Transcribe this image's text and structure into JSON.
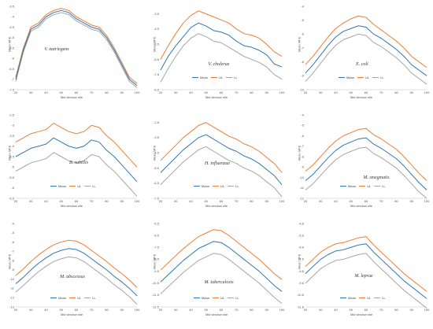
{
  "figure": {
    "colors": {
      "mean": "#2E75B6",
      "ul": "#ED7D31",
      "ll": "#A5A5A5",
      "axis": "#BFBFBF"
    },
    "legend_labels": [
      "Mean",
      "UL",
      "LL"
    ]
  },
  "chart_data": [
    {
      "type": "line",
      "title": "V. natriegens",
      "xlabel": "Mid window site",
      "ylabel": "Mean MFE",
      "xlim": [
        20,
        100
      ],
      "ylim": [
        -7.5,
        -3.5
      ],
      "xticks": [
        20,
        30,
        40,
        50,
        60,
        70,
        80,
        90,
        100
      ],
      "yticks": [
        -7.5,
        -7,
        -6.5,
        -6,
        -5.5,
        -5,
        -4.5,
        -4,
        -3.5
      ],
      "x": [
        20,
        25,
        30,
        35,
        40,
        45,
        50,
        55,
        60,
        65,
        70,
        75,
        80,
        85,
        90,
        95,
        100
      ],
      "series": [
        {
          "name": "Mean",
          "values": [
            -7.0,
            -5.6,
            -4.6,
            -4.4,
            -4.0,
            -3.8,
            -3.7,
            -3.8,
            -4.1,
            -4.3,
            -4.5,
            -4.6,
            -5.0,
            -5.6,
            -6.3,
            -7.0,
            -7.3
          ]
        },
        {
          "name": "UL",
          "values": [
            -6.9,
            -5.5,
            -4.5,
            -4.3,
            -3.9,
            -3.7,
            -3.6,
            -3.7,
            -4.0,
            -4.2,
            -4.4,
            -4.5,
            -4.9,
            -5.5,
            -6.2,
            -6.9,
            -7.2
          ]
        },
        {
          "name": "LL",
          "values": [
            -7.1,
            -5.7,
            -4.7,
            -4.5,
            -4.1,
            -3.9,
            -3.8,
            -3.9,
            -4.2,
            -4.4,
            -4.6,
            -4.7,
            -5.1,
            -5.7,
            -6.4,
            -7.1,
            -7.4
          ]
        }
      ]
    },
    {
      "type": "line",
      "title": "V. cholerae",
      "xlabel": "Mid window site",
      "ylabel": "Mean MFE",
      "xlim": [
        20,
        100
      ],
      "ylim": [
        -8.5,
        -3.0
      ],
      "xticks": [
        20,
        30,
        40,
        50,
        60,
        70,
        80,
        90,
        100
      ],
      "yticks": [
        -8.5,
        -7.5,
        -6.5,
        -5.5,
        -4.5,
        -3.5
      ],
      "x": [
        20,
        25,
        30,
        35,
        40,
        45,
        50,
        55,
        60,
        65,
        70,
        75,
        80,
        85,
        90,
        95,
        100
      ],
      "series": [
        {
          "name": "Mean",
          "values": [
            -7.2,
            -6.3,
            -5.6,
            -5.0,
            -4.4,
            -4.1,
            -4.3,
            -4.6,
            -4.7,
            -4.9,
            -5.3,
            -5.6,
            -5.7,
            -5.9,
            -6.2,
            -6.8,
            -7.0
          ]
        },
        {
          "name": "UL",
          "values": [
            -6.5,
            -5.6,
            -4.8,
            -4.1,
            -3.6,
            -3.3,
            -3.5,
            -3.7,
            -3.9,
            -4.1,
            -4.5,
            -4.8,
            -4.9,
            -5.1,
            -5.5,
            -6.0,
            -6.3
          ]
        },
        {
          "name": "LL",
          "values": [
            -8.0,
            -7.1,
            -6.3,
            -5.6,
            -5.1,
            -4.8,
            -5.0,
            -5.3,
            -5.4,
            -5.7,
            -6.0,
            -6.3,
            -6.5,
            -6.7,
            -7.0,
            -7.5,
            -7.8
          ]
        }
      ]
    },
    {
      "type": "line",
      "title": "E. coli",
      "xlabel": "Mid window site",
      "ylabel": "Mean MFE",
      "xlim": [
        20,
        100
      ],
      "ylim": [
        -10,
        -4
      ],
      "xticks": [
        20,
        30,
        40,
        50,
        60,
        70,
        80,
        90,
        100
      ],
      "yticks": [
        -10,
        -9,
        -8,
        -7,
        -6,
        -5,
        -4
      ],
      "x": [
        20,
        25,
        30,
        35,
        40,
        45,
        50,
        55,
        60,
        65,
        70,
        75,
        80,
        85,
        90,
        95,
        100
      ],
      "series": [
        {
          "name": "Mean",
          "values": [
            -8.8,
            -8.2,
            -7.5,
            -6.8,
            -6.2,
            -5.8,
            -5.6,
            -5.4,
            -5.5,
            -6.0,
            -6.3,
            -6.7,
            -7.1,
            -7.6,
            -8.2,
            -8.6,
            -9.0
          ]
        },
        {
          "name": "UL",
          "values": [
            -8.2,
            -7.6,
            -6.9,
            -6.2,
            -5.6,
            -5.2,
            -4.9,
            -4.7,
            -4.8,
            -5.3,
            -5.7,
            -6.1,
            -6.5,
            -7.0,
            -7.6,
            -8.0,
            -8.4
          ]
        },
        {
          "name": "LL",
          "values": [
            -9.4,
            -8.8,
            -8.1,
            -7.4,
            -6.8,
            -6.4,
            -6.2,
            -6.0,
            -6.1,
            -6.6,
            -6.9,
            -7.3,
            -7.7,
            -8.2,
            -8.8,
            -9.2,
            -9.6
          ]
        }
      ]
    },
    {
      "type": "line",
      "title": "B. subtilis",
      "xlabel": "Mid window site",
      "ylabel": "Mean MFE",
      "xlim": [
        20,
        100
      ],
      "ylim": [
        -6.5,
        -2.5
      ],
      "xticks": [
        20,
        30,
        40,
        50,
        60,
        70,
        80,
        90,
        100
      ],
      "yticks": [
        -6.5,
        -6,
        -5.5,
        -5,
        -4.5,
        -4,
        -3.5,
        -3,
        -2.5
      ],
      "x": [
        20,
        25,
        30,
        35,
        40,
        45,
        50,
        55,
        60,
        65,
        70,
        75,
        80,
        85,
        90,
        95,
        100
      ],
      "series": [
        {
          "name": "Mean",
          "values": [
            -4.5,
            -4.3,
            -4.1,
            -4.0,
            -3.9,
            -3.6,
            -3.8,
            -4.0,
            -4.1,
            -4.0,
            -3.7,
            -3.8,
            -4.2,
            -4.5,
            -4.9,
            -5.3,
            -5.7
          ]
        },
        {
          "name": "UL",
          "values": [
            -3.8,
            -3.6,
            -3.4,
            -3.3,
            -3.2,
            -2.9,
            -3.1,
            -3.3,
            -3.4,
            -3.3,
            -3.0,
            -3.1,
            -3.5,
            -3.8,
            -4.2,
            -4.6,
            -5.0
          ]
        },
        {
          "name": "LL",
          "values": [
            -5.2,
            -5.0,
            -4.8,
            -4.7,
            -4.6,
            -4.3,
            -4.5,
            -4.7,
            -4.8,
            -4.7,
            -4.4,
            -4.5,
            -4.9,
            -5.2,
            -5.6,
            -6.0,
            -6.4
          ]
        }
      ]
    },
    {
      "type": "line",
      "title": "H. influenzae",
      "xlabel": "Mid window site",
      "ylabel": "Mean MFE",
      "xlim": [
        20,
        100
      ],
      "ylim": [
        -7.5,
        -2.0
      ],
      "xticks": [
        20,
        30,
        40,
        50,
        60,
        70,
        80,
        90,
        100
      ],
      "yticks": [
        -7.5,
        -6.5,
        -5.5,
        -4.5,
        -3.5,
        -2.5
      ],
      "x": [
        20,
        25,
        30,
        35,
        40,
        45,
        50,
        55,
        60,
        65,
        70,
        75,
        80,
        85,
        90,
        95,
        100
      ],
      "series": [
        {
          "name": "Mean",
          "values": [
            -5.8,
            -5.3,
            -4.8,
            -4.3,
            -3.9,
            -3.5,
            -3.3,
            -3.6,
            -3.9,
            -4.2,
            -4.4,
            -4.7,
            -4.9,
            -5.2,
            -5.6,
            -6.0,
            -6.6
          ]
        },
        {
          "name": "UL",
          "values": [
            -5.0,
            -4.5,
            -4.0,
            -3.5,
            -3.1,
            -2.7,
            -2.5,
            -2.8,
            -3.1,
            -3.4,
            -3.6,
            -3.9,
            -4.1,
            -4.4,
            -4.8,
            -5.2,
            -5.8
          ]
        },
        {
          "name": "LL",
          "values": [
            -6.6,
            -6.1,
            -5.6,
            -5.1,
            -4.7,
            -4.3,
            -4.1,
            -4.4,
            -4.7,
            -5.0,
            -5.2,
            -5.5,
            -5.7,
            -6.0,
            -6.4,
            -6.8,
            -7.4
          ]
        }
      ]
    },
    {
      "type": "line",
      "title": "M. smegmatis",
      "xlabel": "Mid window site",
      "ylabel": "Mean MFE",
      "xlim": [
        20,
        100
      ],
      "ylim": [
        -12,
        -4
      ],
      "xticks": [
        20,
        30,
        40,
        50,
        60,
        70,
        80,
        90,
        100
      ],
      "yticks": [
        -12,
        -11,
        -10,
        -9,
        -8,
        -7,
        -6,
        -5,
        -4
      ],
      "x": [
        20,
        25,
        30,
        35,
        40,
        45,
        50,
        55,
        60,
        65,
        70,
        75,
        80,
        85,
        90,
        95,
        100
      ],
      "series": [
        {
          "name": "Mean",
          "values": [
            -10.3,
            -9.7,
            -8.9,
            -8.1,
            -7.4,
            -6.9,
            -6.6,
            -6.3,
            -6.2,
            -6.8,
            -7.2,
            -7.7,
            -8.2,
            -8.9,
            -9.7,
            -10.5,
            -11.2
          ]
        },
        {
          "name": "UL",
          "values": [
            -9.4,
            -8.8,
            -8.0,
            -7.2,
            -6.5,
            -6.0,
            -5.7,
            -5.4,
            -5.3,
            -5.9,
            -6.3,
            -6.8,
            -7.3,
            -8.0,
            -8.8,
            -9.6,
            -10.3
          ]
        },
        {
          "name": "LL",
          "values": [
            -11.2,
            -10.6,
            -9.8,
            -9.0,
            -8.3,
            -7.8,
            -7.5,
            -7.2,
            -7.1,
            -7.7,
            -8.1,
            -8.6,
            -9.1,
            -9.8,
            -10.6,
            -11.4,
            -12.0
          ]
        }
      ]
    },
    {
      "type": "line",
      "title": "M. abscessus",
      "xlabel": "Mid window site",
      "ylabel": "Mean MFE",
      "xlim": [
        20,
        100
      ],
      "ylim": [
        -13,
        -4
      ],
      "xticks": [
        20,
        30,
        40,
        50,
        60,
        70,
        80,
        90,
        100
      ],
      "yticks": [
        -13,
        -12,
        -11,
        -10,
        -9,
        -8,
        -7,
        -6,
        -5,
        -4
      ],
      "x": [
        20,
        25,
        30,
        35,
        40,
        45,
        50,
        55,
        60,
        65,
        70,
        75,
        80,
        85,
        90,
        95,
        100
      ],
      "series": [
        {
          "name": "Mean",
          "values": [
            -10.5,
            -9.8,
            -9.0,
            -8.3,
            -7.7,
            -7.2,
            -6.9,
            -6.7,
            -6.8,
            -7.2,
            -7.8,
            -8.4,
            -9.0,
            -9.7,
            -10.3,
            -11.0,
            -11.8
          ]
        },
        {
          "name": "UL",
          "values": [
            -9.6,
            -8.9,
            -8.1,
            -7.4,
            -6.8,
            -6.3,
            -6.0,
            -5.8,
            -5.9,
            -6.3,
            -6.9,
            -7.5,
            -8.1,
            -8.8,
            -9.4,
            -10.1,
            -10.9
          ]
        },
        {
          "name": "LL",
          "values": [
            -11.4,
            -10.7,
            -9.9,
            -9.2,
            -8.6,
            -8.1,
            -7.8,
            -7.6,
            -7.7,
            -8.1,
            -8.7,
            -9.3,
            -9.9,
            -10.6,
            -11.2,
            -11.9,
            -12.7
          ]
        }
      ]
    },
    {
      "type": "line",
      "title": "M. tuberculosis",
      "xlabel": "Mid window site",
      "ylabel": "Mean MFE",
      "xlim": [
        20,
        100
      ],
      "ylim": [
        -12.5,
        -5.5
      ],
      "xticks": [
        20,
        30,
        40,
        50,
        60,
        70,
        80,
        90,
        100
      ],
      "yticks": [
        -12.5,
        -11.5,
        -10.5,
        -9.5,
        -8.5,
        -7.5,
        -6.5,
        -5.5
      ],
      "x": [
        20,
        25,
        30,
        35,
        40,
        45,
        50,
        55,
        60,
        65,
        70,
        75,
        80,
        85,
        90,
        95,
        100
      ],
      "series": [
        {
          "name": "Mean",
          "values": [
            -10.4,
            -9.8,
            -9.2,
            -8.6,
            -8.1,
            -7.6,
            -7.3,
            -7.0,
            -7.1,
            -7.5,
            -8.0,
            -8.5,
            -9.0,
            -9.5,
            -10.1,
            -10.7,
            -11.2
          ]
        },
        {
          "name": "UL",
          "values": [
            -9.4,
            -8.8,
            -8.2,
            -7.6,
            -7.1,
            -6.6,
            -6.3,
            -6.0,
            -6.1,
            -6.5,
            -7.0,
            -7.5,
            -8.0,
            -8.5,
            -9.1,
            -9.7,
            -10.2
          ]
        },
        {
          "name": "LL",
          "values": [
            -11.4,
            -10.8,
            -10.2,
            -9.6,
            -9.1,
            -8.6,
            -8.3,
            -8.0,
            -8.1,
            -8.5,
            -9.0,
            -9.5,
            -10.0,
            -10.5,
            -11.1,
            -11.7,
            -12.2
          ]
        }
      ]
    },
    {
      "type": "line",
      "title": "M. leprae",
      "xlabel": "Mid window site",
      "ylabel": "Mean MFE",
      "xlim": [
        20,
        100
      ],
      "ylim": [
        -11.6,
        -4.6
      ],
      "xticks": [
        20,
        30,
        40,
        50,
        60,
        70,
        80,
        90,
        100
      ],
      "yticks": [
        -11.6,
        -10.6,
        -9.6,
        -8.6,
        -7.6,
        -6.6,
        -5.6,
        -4.6
      ],
      "x": [
        20,
        25,
        30,
        35,
        40,
        45,
        50,
        55,
        60,
        65,
        70,
        75,
        80,
        85,
        90,
        95,
        100
      ],
      "series": [
        {
          "name": "Mean",
          "values": [
            -8.8,
            -8.2,
            -7.6,
            -7.2,
            -6.9,
            -6.8,
            -6.6,
            -6.4,
            -6.3,
            -7.0,
            -7.6,
            -8.2,
            -8.8,
            -9.4,
            -9.9,
            -10.4,
            -10.9
          ]
        },
        {
          "name": "UL",
          "values": [
            -8.2,
            -7.6,
            -7.0,
            -6.6,
            -6.3,
            -6.2,
            -6.0,
            -5.8,
            -5.7,
            -6.4,
            -7.0,
            -7.6,
            -8.2,
            -8.8,
            -9.3,
            -9.8,
            -10.3
          ]
        },
        {
          "name": "LL",
          "values": [
            -9.6,
            -9.0,
            -8.4,
            -8.0,
            -7.7,
            -7.6,
            -7.4,
            -7.2,
            -7.1,
            -7.8,
            -8.4,
            -9.0,
            -9.6,
            -10.2,
            -10.7,
            -11.2,
            -11.7
          ]
        }
      ]
    }
  ]
}
